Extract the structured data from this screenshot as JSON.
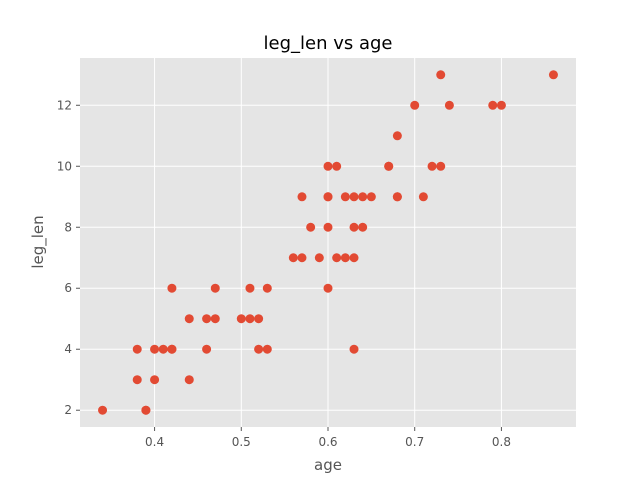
{
  "chart_data": {
    "type": "scatter",
    "title": "leg_len vs age",
    "xlabel": "age",
    "ylabel": "leg_len",
    "xlim": [
      0.314,
      0.886
    ],
    "ylim": [
      1.45,
      13.55
    ],
    "xticks": [
      0.4,
      0.5,
      0.6,
      0.7,
      0.8
    ],
    "xtick_labels": [
      "0.4",
      "0.5",
      "0.6",
      "0.7",
      "0.8"
    ],
    "yticks": [
      2,
      4,
      6,
      8,
      10,
      12
    ],
    "ytick_labels": [
      "2",
      "4",
      "6",
      "8",
      "10",
      "12"
    ],
    "grid": true,
    "legend": false,
    "colors": {
      "point": "#E24A33",
      "plot_bg": "#E5E5E5",
      "grid": "#FFFFFF"
    },
    "series": [
      {
        "x": [
          0.34,
          0.39,
          0.39,
          0.38,
          0.4,
          0.44,
          0.38,
          0.4,
          0.41,
          0.42,
          0.42,
          0.46,
          0.52,
          0.53,
          0.63,
          0.44,
          0.46,
          0.47,
          0.5,
          0.51,
          0.52,
          0.42,
          0.47,
          0.51,
          0.53,
          0.6,
          0.56,
          0.57,
          0.59,
          0.61,
          0.62,
          0.63,
          0.58,
          0.6,
          0.63,
          0.64,
          0.57,
          0.6,
          0.6,
          0.62,
          0.63,
          0.64,
          0.65,
          0.68,
          0.68,
          0.71,
          0.6,
          0.61,
          0.67,
          0.67,
          0.72,
          0.73,
          0.68,
          0.7,
          0.74,
          0.79,
          0.8,
          0.73,
          0.86
        ],
        "y": [
          2,
          2,
          2,
          3,
          3,
          3,
          4,
          4,
          4,
          4,
          4,
          4,
          4,
          4,
          4,
          5,
          5,
          5,
          5,
          5,
          5,
          6,
          6,
          6,
          6,
          6,
          7,
          7,
          7,
          7,
          7,
          7,
          8,
          8,
          8,
          8,
          9,
          9,
          9,
          9,
          9,
          9,
          9,
          9,
          9,
          9,
          10,
          10,
          10,
          10,
          10,
          10,
          11,
          12,
          12,
          12,
          12,
          13,
          13
        ]
      }
    ]
  }
}
